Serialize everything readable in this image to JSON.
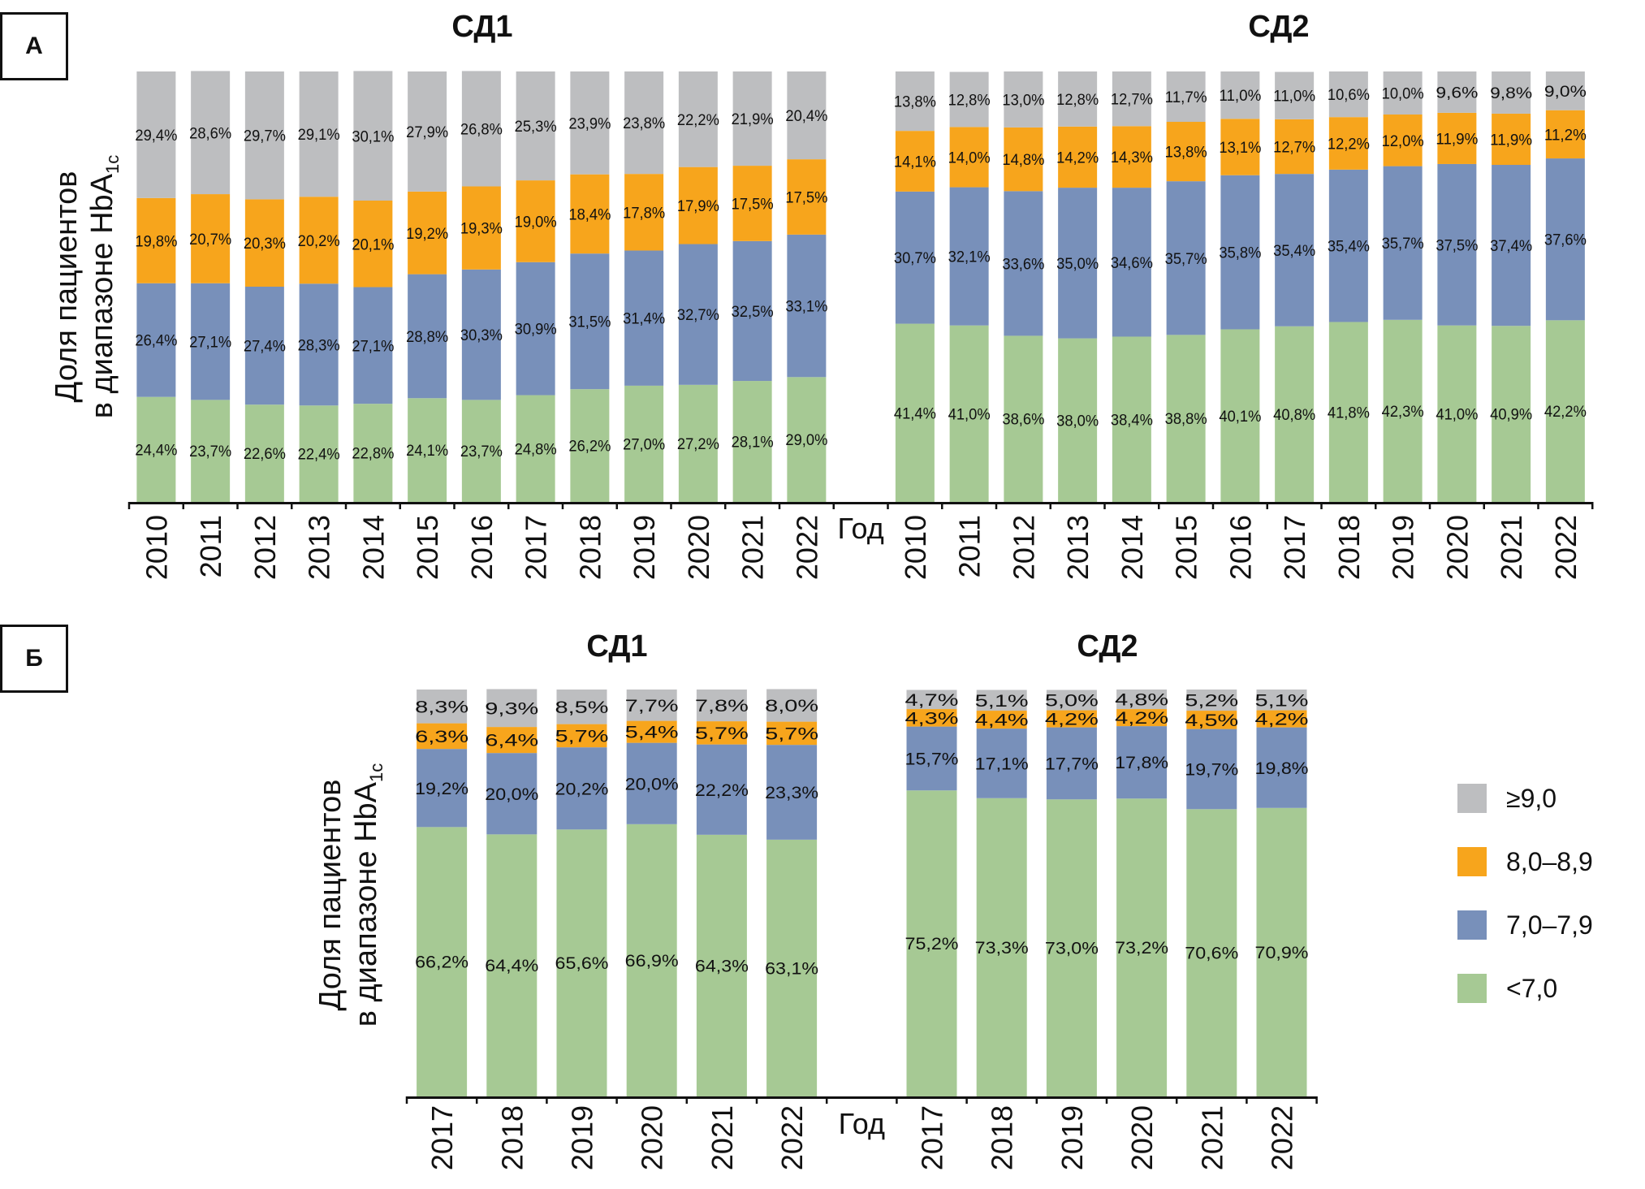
{
  "colors": {
    "ge9": "#bdbec0",
    "r8_89": "#f7a51c",
    "r7_79": "#7890ba",
    "lt7": "#a6c994",
    "axis": "#111111",
    "text": "#111111"
  },
  "chart_data": [
    {
      "type": "bar",
      "stacked": true,
      "panel_label": "А",
      "ylabel_line1": "Доля пациентов",
      "ylabel_line2": "в диапазоне HbA",
      "ylabel_sub": "1c",
      "xlabel": "Год",
      "ylim": [
        0,
        100
      ],
      "unit": "%",
      "grid": false,
      "groups": [
        {
          "title": "СД1",
          "categories": [
            "2010",
            "2011",
            "2012",
            "2013",
            "2014",
            "2015",
            "2016",
            "2017",
            "2018",
            "2019",
            "2020",
            "2021",
            "2022"
          ],
          "series": [
            {
              "name": "<7,0",
              "key": "lt7",
              "values": [
                24.4,
                23.7,
                22.6,
                22.4,
                22.8,
                24.1,
                23.7,
                24.8,
                26.2,
                27.0,
                27.2,
                28.1,
                29.0
              ],
              "labels": [
                "24,4%",
                "23,7%",
                "22,6%",
                "22,4%",
                "22,8%",
                "24,1%",
                "23,7%",
                "24,8%",
                "26,2%",
                "27,0%",
                "27,2%",
                "28,1%",
                "29,0%"
              ]
            },
            {
              "name": "7,0–7,9",
              "key": "r7_79",
              "values": [
                26.4,
                27.1,
                27.4,
                28.3,
                27.1,
                28.8,
                30.3,
                30.9,
                31.5,
                31.4,
                32.7,
                32.5,
                33.1
              ],
              "labels": [
                "26,4%",
                "27,1%",
                "27,4%",
                "28,3%",
                "27,1%",
                "28,8%",
                "30,3%",
                "30,9%",
                "31,5%",
                "31,4%",
                "32,7%",
                "32,5%",
                "33,1%"
              ]
            },
            {
              "name": "8,0–8,9",
              "key": "r8_89",
              "values": [
                19.8,
                20.7,
                20.3,
                20.2,
                20.1,
                19.2,
                19.3,
                19.0,
                18.4,
                17.8,
                17.9,
                17.5,
                17.5
              ],
              "labels": [
                "19,8%",
                "20,7%",
                "20,3%",
                "20,2%",
                "20,1%",
                "19,2%",
                "19,3%",
                "19,0%",
                "18,4%",
                "17,8%",
                "17,9%",
                "17,5%",
                "17,5%"
              ]
            },
            {
              "name": "≥9,0",
              "key": "ge9",
              "values": [
                29.4,
                28.6,
                29.7,
                29.1,
                30.1,
                27.9,
                26.8,
                25.3,
                23.9,
                23.8,
                22.2,
                21.9,
                20.4
              ],
              "labels": [
                "29,4%",
                "28,6%",
                "29,7%",
                "29,1%",
                "30,1%",
                "27,9%",
                "26,8%",
                "25,3%",
                "23,9%",
                "23,8%",
                "22,2%",
                "21,9%",
                "20,4%"
              ]
            }
          ]
        },
        {
          "title": "СД2",
          "categories": [
            "2010",
            "2011",
            "2012",
            "2013",
            "2014",
            "2015",
            "2016",
            "2017",
            "2018",
            "2019",
            "2020",
            "2021",
            "2022"
          ],
          "series": [
            {
              "name": "<7,0",
              "key": "lt7",
              "values": [
                41.4,
                41.0,
                38.6,
                38.0,
                38.4,
                38.8,
                40.1,
                40.8,
                41.8,
                42.3,
                41.0,
                40.9,
                42.2
              ],
              "labels": [
                "41,4%",
                "41,0%",
                "38,6%",
                "38,0%",
                "38,4%",
                "38,8%",
                "40,1%",
                "40,8%",
                "41,8%",
                "42,3%",
                "41,0%",
                "40,9%",
                "42,2%"
              ]
            },
            {
              "name": "7,0–7,9",
              "key": "r7_79",
              "values": [
                30.7,
                32.1,
                33.6,
                35.0,
                34.6,
                35.7,
                35.8,
                35.4,
                35.4,
                35.7,
                37.5,
                37.4,
                37.6
              ],
              "labels": [
                "30,7%",
                "32,1%",
                "33,6%",
                "35,0%",
                "34,6%",
                "35,7%",
                "35,8%",
                "35,4%",
                "35,4%",
                "35,7%",
                "37,5%",
                "37,4%",
                "37,6%"
              ]
            },
            {
              "name": "8,0–8,9",
              "key": "r8_89",
              "values": [
                14.1,
                14.0,
                14.8,
                14.2,
                14.3,
                13.8,
                13.1,
                12.7,
                12.2,
                12.0,
                11.9,
                11.9,
                11.2
              ],
              "labels": [
                "14,1%",
                "14,0%",
                "14,8%",
                "14,2%",
                "14,3%",
                "13,8%",
                "13,1%",
                "12,7%",
                "12,2%",
                "12,0%",
                "11,9%",
                "11,9%",
                "11,2%"
              ]
            },
            {
              "name": "≥9,0",
              "key": "ge9",
              "values": [
                13.8,
                12.8,
                13.0,
                12.8,
                12.7,
                11.7,
                11.0,
                11.0,
                10.6,
                10.0,
                9.6,
                9.8,
                9.0
              ],
              "labels": [
                "13,8%",
                "12,8%",
                "13,0%",
                "12,8%",
                "12,7%",
                "11,7%",
                "11,0%",
                "11,0%",
                "10,6%",
                "10,0%",
                "9,6%",
                "9,8%",
                "9,0%"
              ]
            }
          ]
        }
      ]
    },
    {
      "type": "bar",
      "stacked": true,
      "panel_label": "Б",
      "ylabel_line1": "Доля пациентов",
      "ylabel_line2": "в диапазоне HbA",
      "ylabel_sub": "1c",
      "xlabel": "Год",
      "ylim": [
        0,
        100
      ],
      "unit": "%",
      "grid": false,
      "legend_position": "right",
      "groups": [
        {
          "title": "СД1",
          "categories": [
            "2017",
            "2018",
            "2019",
            "2020",
            "2021",
            "2022"
          ],
          "series": [
            {
              "name": "<7,0",
              "key": "lt7",
              "values": [
                66.2,
                64.4,
                65.6,
                66.9,
                64.3,
                63.1
              ],
              "labels": [
                "66,2%",
                "64,4%",
                "65,6%",
                "66,9%",
                "64,3%",
                "63,1%"
              ]
            },
            {
              "name": "7,0–7,9",
              "key": "r7_79",
              "values": [
                19.2,
                20.0,
                20.2,
                20.0,
                22.2,
                23.3
              ],
              "labels": [
                "19,2%",
                "20,0%",
                "20,2%",
                "20,0%",
                "22,2%",
                "23,3%"
              ]
            },
            {
              "name": "8,0–8,9",
              "key": "r8_89",
              "values": [
                6.3,
                6.4,
                5.7,
                5.4,
                5.7,
                5.7
              ],
              "labels": [
                "6,3%",
                "6,4%",
                "5,7%",
                "5,4%",
                "5,7%",
                "5,7%"
              ]
            },
            {
              "name": "≥9,0",
              "key": "ge9",
              "values": [
                8.3,
                9.3,
                8.5,
                7.7,
                7.8,
                8.0
              ],
              "labels": [
                "8,3%",
                "9,3%",
                "8,5%",
                "7,7%",
                "7,8%",
                "8,0%"
              ]
            }
          ]
        },
        {
          "title": "СД2",
          "categories": [
            "2017",
            "2018",
            "2019",
            "2020",
            "2021",
            "2022"
          ],
          "series": [
            {
              "name": "<7,0",
              "key": "lt7",
              "values": [
                75.2,
                73.3,
                73.0,
                73.2,
                70.6,
                70.9
              ],
              "labels": [
                "75,2%",
                "73,3%",
                "73,0%",
                "73,2%",
                "70,6%",
                "70,9%"
              ]
            },
            {
              "name": "7,0–7,9",
              "key": "r7_79",
              "values": [
                15.7,
                17.1,
                17.7,
                17.8,
                19.7,
                19.8
              ],
              "labels": [
                "15,7%",
                "17,1%",
                "17,7%",
                "17,8%",
                "19,7%",
                "19,8%"
              ]
            },
            {
              "name": "8,0–8,9",
              "key": "r8_89",
              "values": [
                4.3,
                4.4,
                4.2,
                4.2,
                4.5,
                4.2
              ],
              "labels": [
                "4,3%",
                "4,4%",
                "4,2%",
                "4,2%",
                "4,5%",
                "4,2%"
              ]
            },
            {
              "name": "≥9,0",
              "key": "ge9",
              "values": [
                4.7,
                5.1,
                5.0,
                4.8,
                5.2,
                5.1
              ],
              "labels": [
                "4,7%",
                "5,1%",
                "5,0%",
                "4,8%",
                "5,2%",
                "5,1%"
              ]
            }
          ]
        }
      ]
    }
  ],
  "legend": {
    "items": [
      {
        "label": "≥9,0",
        "key": "ge9"
      },
      {
        "label": "8,0–8,9",
        "key": "r8_89"
      },
      {
        "label": "7,0–7,9",
        "key": "r7_79"
      },
      {
        "label": "<7,0",
        "key": "lt7"
      }
    ]
  }
}
